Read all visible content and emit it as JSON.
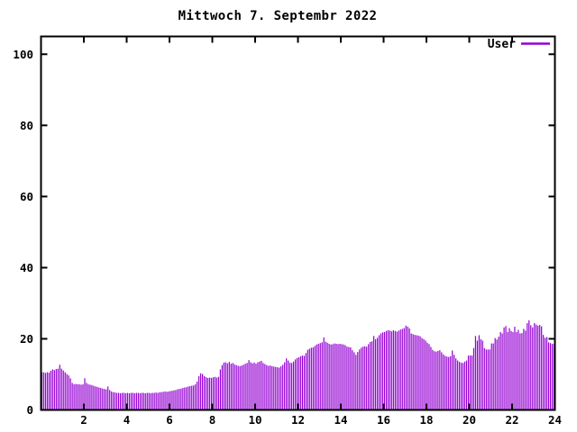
{
  "chart_data": {
    "type": "bar",
    "title": "Mittwoch 7. Septembr 2022",
    "xlabel": "",
    "ylabel": "",
    "xlim": [
      0,
      24
    ],
    "ylim": [
      0,
      105
    ],
    "x_ticks": [
      2,
      4,
      6,
      8,
      10,
      12,
      14,
      16,
      18,
      20,
      22,
      24
    ],
    "y_ticks": [
      0,
      20,
      40,
      60,
      80,
      100
    ],
    "grid": false,
    "legend_position": "top-right-inside",
    "series": [
      {
        "name": "User",
        "color": "#9400d3",
        "values": [
          10.5,
          10.6,
          10.4,
          10.6,
          10.5,
          11.0,
          11.4,
          11.2,
          11.5,
          11.6,
          12.7,
          11.6,
          11.1,
          10.6,
          10.1,
          9.7,
          8.9,
          7.6,
          7.2,
          7.3,
          7.2,
          7.2,
          7.1,
          7.2,
          8.9,
          7.6,
          7.2,
          7.1,
          7.0,
          6.8,
          6.6,
          6.5,
          6.3,
          6.2,
          6.0,
          5.9,
          5.8,
          6.6,
          5.6,
          5.2,
          5.0,
          4.9,
          4.8,
          4.8,
          4.7,
          4.8,
          4.8,
          4.7,
          4.8,
          4.7,
          4.8,
          4.8,
          4.7,
          4.8,
          4.8,
          4.7,
          4.8,
          4.8,
          4.7,
          4.8,
          4.8,
          4.7,
          4.8,
          4.8,
          4.9,
          4.8,
          5.0,
          5.0,
          5.1,
          5.2,
          5.1,
          5.2,
          5.3,
          5.4,
          5.5,
          5.6,
          5.8,
          5.9,
          6.0,
          6.2,
          6.3,
          6.4,
          6.6,
          6.7,
          6.8,
          6.9,
          7.2,
          8.0,
          9.5,
          10.3,
          10.1,
          9.5,
          9.2,
          9.0,
          9.1,
          9.0,
          9.2,
          9.3,
          9.1,
          9.3,
          11.4,
          12.6,
          13.3,
          13.4,
          13.1,
          13.5,
          13.0,
          13.2,
          12.8,
          12.6,
          12.4,
          12.3,
          12.5,
          12.7,
          13.0,
          13.2,
          14.0,
          13.4,
          13.1,
          13.3,
          13.0,
          13.4,
          13.6,
          13.8,
          13.2,
          12.9,
          12.6,
          12.4,
          12.5,
          12.3,
          12.2,
          12.1,
          12.0,
          11.9,
          12.3,
          12.7,
          13.4,
          14.5,
          13.9,
          13.3,
          13.2,
          13.6,
          14.2,
          14.6,
          14.8,
          15.1,
          15.3,
          15.2,
          16.0,
          16.9,
          17.2,
          17.5,
          17.6,
          18.0,
          18.4,
          18.6,
          18.8,
          19.0,
          20.4,
          19.2,
          18.9,
          18.6,
          18.4,
          18.5,
          18.7,
          18.6,
          18.5,
          18.6,
          18.5,
          18.4,
          18.2,
          17.8,
          17.7,
          17.6,
          16.8,
          16.2,
          15.5,
          16.3,
          17.0,
          17.5,
          17.8,
          17.9,
          17.8,
          18.5,
          19.1,
          19.3,
          20.8,
          19.9,
          20.3,
          21.0,
          21.5,
          21.8,
          21.9,
          22.2,
          22.4,
          22.3,
          22.1,
          22.4,
          22.2,
          22.0,
          22.3,
          22.6,
          22.8,
          23.0,
          23.7,
          23.4,
          22.9,
          21.5,
          21.3,
          21.1,
          21.0,
          20.9,
          20.7,
          20.2,
          19.9,
          19.5,
          18.9,
          18.5,
          17.7,
          16.9,
          16.5,
          16.4,
          16.6,
          16.8,
          16.2,
          15.6,
          15.2,
          15.0,
          14.9,
          15.1,
          16.7,
          15.5,
          14.5,
          13.9,
          13.5,
          13.3,
          13.2,
          13.6,
          13.9,
          15.3,
          15.3,
          15.3,
          17.4,
          20.8,
          19.5,
          21.0,
          19.9,
          19.5,
          17.4,
          17.0,
          17.0,
          17.0,
          18.7,
          18.7,
          20.2,
          19.8,
          20.6,
          21.9,
          21.5,
          23.2,
          23.6,
          21.9,
          23.0,
          22.2,
          21.9,
          23.4,
          21.9,
          22.5,
          21.5,
          21.6,
          22.8,
          22.3,
          24.4,
          25.2,
          23.8,
          23.2,
          24.4,
          24.0,
          23.7,
          23.9,
          23.5,
          21.1,
          20.3,
          20.5,
          19.0,
          18.8,
          18.6,
          18.5
        ]
      }
    ]
  },
  "colors": {
    "background": "#ffffff",
    "axis": "#000000",
    "text": "#000000",
    "bar": "#9400d3"
  }
}
